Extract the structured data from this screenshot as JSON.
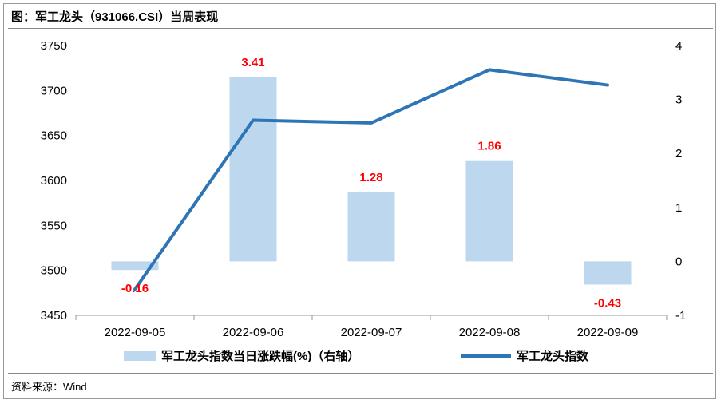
{
  "title": "图：军工龙头（931066.CSI）当周表现",
  "source": "资料来源：Wind",
  "chart_data": {
    "type": "bar+line",
    "categories": [
      "2022-09-05",
      "2022-09-06",
      "2022-09-07",
      "2022-09-08",
      "2022-09-09"
    ],
    "series": [
      {
        "name": "军工龙头指数当日涨跌幅(%)（右轴）",
        "type": "bar",
        "axis": "right",
        "values": [
          -0.16,
          3.41,
          1.28,
          1.86,
          -0.43
        ],
        "labels": [
          "-0.16",
          "3.41",
          "1.28",
          "1.86",
          "-0.43"
        ],
        "color": "#bdd7ee"
      },
      {
        "name": "军工龙头指数",
        "type": "line",
        "axis": "left",
        "values": [
          3479,
          3667,
          3664,
          3723,
          3706
        ],
        "color": "#2e75b6"
      }
    ],
    "y_left": {
      "min": 3450,
      "max": 3750,
      "ticks": [
        "3450",
        "3500",
        "3550",
        "3600",
        "3650",
        "3700",
        "3750"
      ]
    },
    "y_right": {
      "min": -1,
      "max": 4,
      "ticks": [
        "-1",
        "0",
        "1",
        "2",
        "3",
        "4"
      ]
    },
    "label_color": "#ff0000",
    "legend_position": "bottom"
  }
}
